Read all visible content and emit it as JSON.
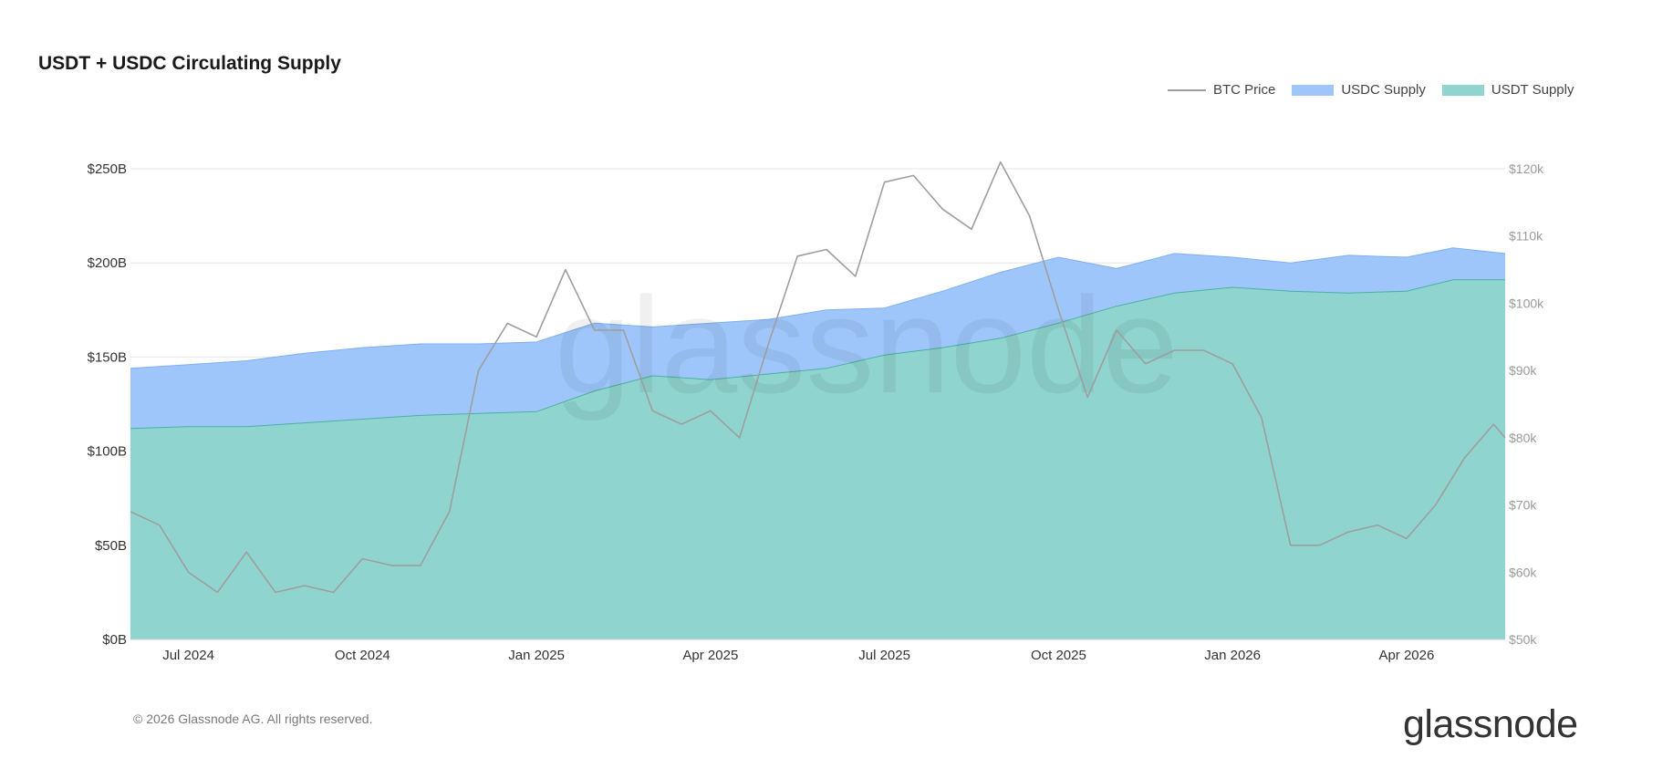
{
  "chart_data": {
    "type": "area",
    "title": "USDT + USDC Circulating Supply",
    "legend_position": "top-right",
    "grid": true,
    "x_ticks": [
      "Jul 2024",
      "Oct 2024",
      "Jan 2025",
      "Apr 2025",
      "Jul 2025",
      "Oct 2025",
      "Jan 2026",
      "Apr 2026"
    ],
    "x_tick_months": [
      1,
      4,
      7,
      10,
      13,
      16,
      19,
      22
    ],
    "xlim_months": [
      0,
      23.7
    ],
    "y_left_ticks": [
      "$0B",
      "$50B",
      "$100B",
      "$150B",
      "$200B",
      "$250B"
    ],
    "y_left_values": [
      0,
      50,
      100,
      150,
      200,
      250
    ],
    "ylim_left": [
      0,
      250
    ],
    "y_right_ticks": [
      "$50k",
      "$60k",
      "$70k",
      "$80k",
      "$90k",
      "$100k",
      "$110k",
      "$120k"
    ],
    "y_right_values": [
      50,
      60,
      70,
      80,
      90,
      100,
      110,
      120
    ],
    "ylim_right": [
      50,
      120
    ],
    "colors": {
      "usdt": "#8fd4cf",
      "usdc": "#9fc6fb",
      "btc": "#9e9e9e",
      "usdt_edge": "#4ab0a2",
      "usdc_edge": "#7fb0f2"
    },
    "series": [
      {
        "name": "USDT Supply",
        "unit": "billion USD",
        "x_months": [
          0,
          1,
          2,
          3,
          4,
          5,
          6,
          7,
          8,
          9,
          10,
          11,
          12,
          13,
          14,
          15,
          16,
          17,
          18,
          19,
          20,
          21,
          22,
          22.8,
          23.7
        ],
        "values": [
          112,
          113,
          113,
          115,
          117,
          119,
          120,
          121,
          132,
          140,
          138,
          141,
          144,
          151,
          155,
          160,
          168,
          177,
          184,
          187,
          185,
          184,
          185,
          191,
          191
        ]
      },
      {
        "name": "USDC Supply",
        "unit": "billion USD",
        "x_months": [
          0,
          1,
          2,
          3,
          4,
          5,
          6,
          7,
          8,
          9,
          10,
          11,
          12,
          13,
          14,
          15,
          16,
          17,
          18,
          19,
          20,
          21,
          22,
          22.8,
          23.7
        ],
        "values": [
          144,
          146,
          148,
          152,
          155,
          157,
          157,
          158,
          168,
          166,
          168,
          170,
          175,
          176,
          185,
          195,
          203,
          197,
          205,
          203,
          200,
          204,
          203,
          208,
          205
        ]
      },
      {
        "name": "BTC Price",
        "unit": "thousand USD",
        "axis": "right",
        "x_months": [
          0,
          0.5,
          1,
          1.5,
          2,
          2.5,
          3,
          3.5,
          4,
          4.5,
          5,
          5.5,
          6,
          6.5,
          7,
          7.5,
          8,
          8.5,
          9,
          9.5,
          10,
          10.5,
          11,
          11.5,
          12,
          12.5,
          13,
          13.5,
          14,
          14.5,
          15,
          15.5,
          16,
          16.5,
          17,
          17.5,
          18,
          18.5,
          19,
          19.5,
          20,
          20.5,
          21,
          21.5,
          22,
          22.5,
          23,
          23.5,
          23.7
        ],
        "values": [
          69,
          67,
          60,
          57,
          63,
          57,
          58,
          57,
          62,
          61,
          61,
          69,
          90,
          97,
          95,
          105,
          96,
          96,
          84,
          82,
          84,
          80,
          94,
          107,
          108,
          104,
          118,
          119,
          114,
          111,
          121,
          113,
          99,
          86,
          96,
          91,
          93,
          93,
          91,
          83,
          64,
          64,
          66,
          67,
          65,
          70,
          77,
          82,
          80
        ]
      }
    ]
  },
  "footer": {
    "copyright": "© 2026 Glassnode AG. All rights reserved.",
    "logo_text": "glassnode",
    "watermark": "glassnode"
  }
}
